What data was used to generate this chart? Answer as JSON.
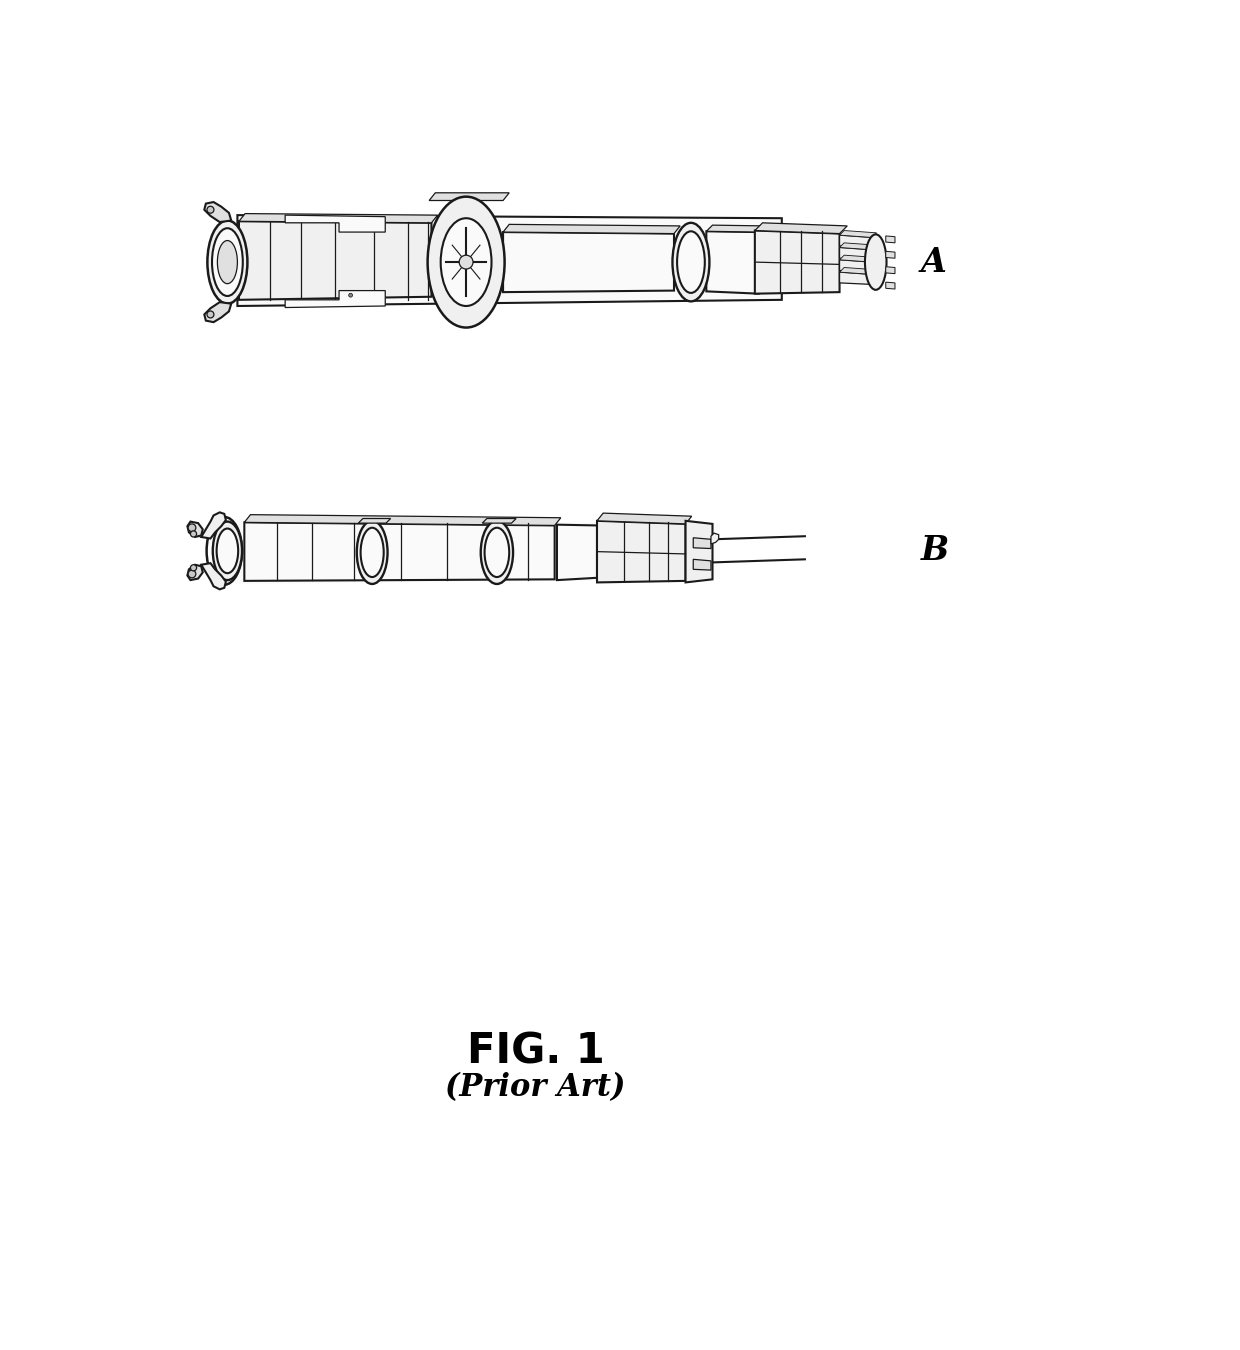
{
  "background_color": "#ffffff",
  "line_color": "#1a1a1a",
  "fill_light": "#f0f0f0",
  "fill_mid": "#e0e0e0",
  "fill_dark": "#c8c8c8",
  "fill_white": "#fafafa",
  "lw_main": 1.5,
  "lw_thin": 0.9,
  "lw_thick": 2.0,
  "label_A": "A",
  "label_B": "B",
  "fig_label": "FIG. 1",
  "fig_sublabel": "(Prior Art)",
  "label_fontsize": 24,
  "fig_fontsize": 30,
  "subfig_fontsize": 22
}
